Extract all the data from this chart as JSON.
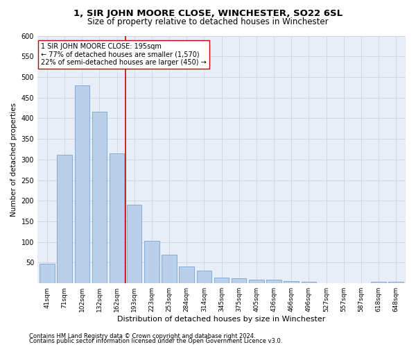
{
  "title": "1, SIR JOHN MOORE CLOSE, WINCHESTER, SO22 6SL",
  "subtitle": "Size of property relative to detached houses in Winchester",
  "xlabel": "Distribution of detached houses by size in Winchester",
  "ylabel": "Number of detached properties",
  "categories": [
    "41sqm",
    "71sqm",
    "102sqm",
    "132sqm",
    "162sqm",
    "193sqm",
    "223sqm",
    "253sqm",
    "284sqm",
    "314sqm",
    "345sqm",
    "375sqm",
    "405sqm",
    "436sqm",
    "466sqm",
    "496sqm",
    "527sqm",
    "557sqm",
    "587sqm",
    "618sqm",
    "648sqm"
  ],
  "values": [
    48,
    312,
    480,
    415,
    315,
    190,
    103,
    70,
    40,
    30,
    13,
    12,
    9,
    8,
    5,
    3,
    0,
    0,
    0,
    4,
    4
  ],
  "bar_color": "#b8d0ea",
  "bar_edge_color": "#6699cc",
  "vline_x": 5.0,
  "vline_color": "#cc0000",
  "annotation_text": "1 SIR JOHN MOORE CLOSE: 195sqm\n← 77% of detached houses are smaller (1,570)\n22% of semi-detached houses are larger (450) →",
  "annotation_box_color": "#ffffff",
  "annotation_box_edge": "#cc0000",
  "ylim": [
    0,
    600
  ],
  "yticks": [
    0,
    50,
    100,
    150,
    200,
    250,
    300,
    350,
    400,
    450,
    500,
    550,
    600
  ],
  "bg_color": "#e8eef8",
  "footnote1": "Contains HM Land Registry data © Crown copyright and database right 2024.",
  "footnote2": "Contains public sector information licensed under the Open Government Licence v3.0.",
  "title_fontsize": 9.5,
  "subtitle_fontsize": 8.5,
  "bar_fontsize": 7,
  "ylabel_fontsize": 7.5,
  "xlabel_fontsize": 8,
  "footnote_fontsize": 6,
  "annotation_fontsize": 7
}
